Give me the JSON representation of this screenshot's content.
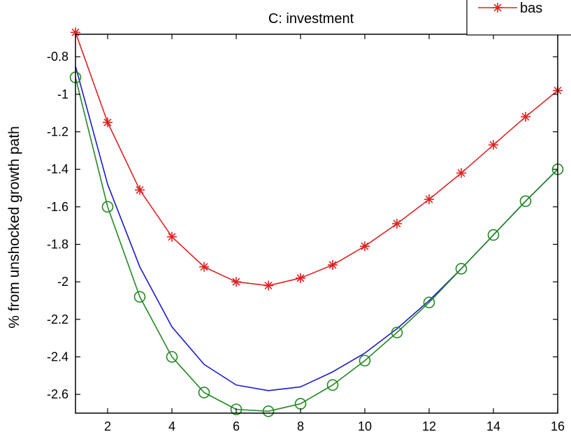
{
  "chart_data": {
    "type": "line",
    "title": "C: investment",
    "xlabel": "",
    "ylabel": "% from unshocked growth path",
    "xlim": [
      1,
      16
    ],
    "ylim": [
      -2.7,
      -0.68
    ],
    "x_ticks": [
      2,
      4,
      6,
      8,
      10,
      12,
      14,
      16
    ],
    "y_ticks": [
      -2.6,
      -2.4,
      -2.2,
      -2,
      -1.8,
      -1.6,
      -1.4,
      -1.2,
      -1,
      -0.8
    ],
    "x": [
      1,
      2,
      3,
      4,
      5,
      6,
      7,
      8,
      9,
      10,
      11,
      12,
      13,
      14,
      15,
      16
    ],
    "series": [
      {
        "name": "bas",
        "color": "#dd2222",
        "marker": "star",
        "values": [
          -0.67,
          -1.15,
          -1.51,
          -1.76,
          -1.92,
          -2.0,
          -2.02,
          -1.98,
          -1.91,
          -1.81,
          -1.69,
          -1.56,
          -1.42,
          -1.27,
          -1.12,
          -0.98
        ]
      },
      {
        "color": "#1a1acc",
        "marker": "none",
        "values": [
          -0.85,
          -1.48,
          -1.92,
          -2.24,
          -2.44,
          -2.55,
          -2.58,
          -2.56,
          -2.48,
          -2.38,
          -2.25,
          -2.1,
          -1.93,
          -1.75,
          -1.57,
          -1.4
        ]
      },
      {
        "color": "#228822",
        "marker": "circle",
        "values": [
          -0.91,
          -1.6,
          -2.08,
          -2.4,
          -2.59,
          -2.68,
          -2.69,
          -2.65,
          -2.55,
          -2.42,
          -2.27,
          -2.11,
          -1.93,
          -1.75,
          -1.57,
          -1.4
        ]
      }
    ],
    "grid": false,
    "legend": {
      "placement": "top-right",
      "entries": [
        "bas"
      ]
    }
  }
}
